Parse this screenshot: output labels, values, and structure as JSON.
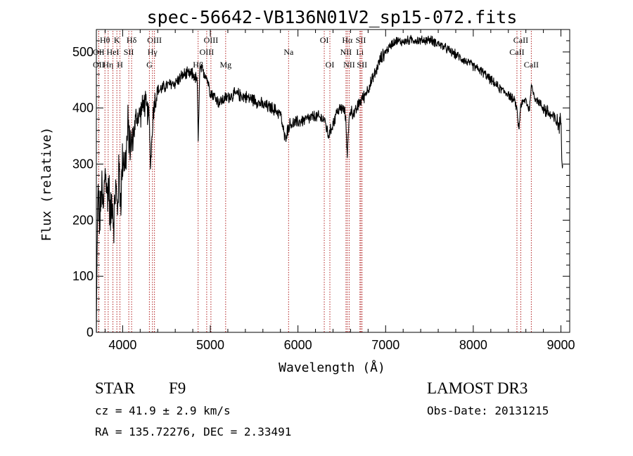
{
  "info": {
    "class": "STAR",
    "subclass": "F9",
    "survey": "LAMOST DR3",
    "cz": "cz = 41.9 ± 2.9 km/s",
    "obs_date": "Obs-Date: 20131215",
    "coords": "RA = 135.72276, DEC =   2.33491"
  },
  "chart_data": {
    "type": "line",
    "title": "spec-56642-VB136N01V2_sp15-072.fits",
    "xlabel": "Wavelength (Å)",
    "ylabel": "Flux (relative)",
    "xlim": [
      3700,
      9100
    ],
    "ylim": [
      0,
      540
    ],
    "x_ticks": [
      4000,
      5000,
      6000,
      7000,
      8000,
      9000
    ],
    "y_ticks": [
      0,
      100,
      200,
      300,
      400,
      500
    ],
    "line_color": "#000000",
    "marker_color": "#b22222",
    "spectrum_anchors": [
      [
        3700,
        0
      ],
      [
        3708,
        150
      ],
      [
        3720,
        250
      ],
      [
        3740,
        190
      ],
      [
        3760,
        260
      ],
      [
        3780,
        210
      ],
      [
        3800,
        300
      ],
      [
        3820,
        240
      ],
      [
        3840,
        270
      ],
      [
        3860,
        200
      ],
      [
        3880,
        250
      ],
      [
        3900,
        190
      ],
      [
        3920,
        260
      ],
      [
        3940,
        220
      ],
      [
        3960,
        290
      ],
      [
        3980,
        230
      ],
      [
        4000,
        320
      ],
      [
        4030,
        300
      ],
      [
        4060,
        360
      ],
      [
        4100,
        330
      ],
      [
        4150,
        380
      ],
      [
        4200,
        390
      ],
      [
        4250,
        410
      ],
      [
        4300,
        385
      ],
      [
        4320,
        300
      ],
      [
        4350,
        400
      ],
      [
        4400,
        430
      ],
      [
        4500,
        440
      ],
      [
        4600,
        445
      ],
      [
        4700,
        460
      ],
      [
        4800,
        460
      ],
      [
        4850,
        450
      ],
      [
        4862,
        340
      ],
      [
        4880,
        470
      ],
      [
        4950,
        460
      ],
      [
        5000,
        430
      ],
      [
        5100,
        410
      ],
      [
        5200,
        420
      ],
      [
        5300,
        425
      ],
      [
        5400,
        420
      ],
      [
        5500,
        415
      ],
      [
        5600,
        405
      ],
      [
        5700,
        400
      ],
      [
        5800,
        390
      ],
      [
        5850,
        345
      ],
      [
        5900,
        370
      ],
      [
        6000,
        375
      ],
      [
        6100,
        380
      ],
      [
        6200,
        385
      ],
      [
        6300,
        380
      ],
      [
        6350,
        350
      ],
      [
        6450,
        395
      ],
      [
        6500,
        400
      ],
      [
        6540,
        390
      ],
      [
        6563,
        320
      ],
      [
        6590,
        395
      ],
      [
        6650,
        390
      ],
      [
        6700,
        410
      ],
      [
        6750,
        420
      ],
      [
        6800,
        435
      ],
      [
        6850,
        450
      ],
      [
        6900,
        470
      ],
      [
        6950,
        490
      ],
      [
        7000,
        500
      ],
      [
        7050,
        510
      ],
      [
        7100,
        520
      ],
      [
        7200,
        518
      ],
      [
        7300,
        522
      ],
      [
        7400,
        520
      ],
      [
        7500,
        522
      ],
      [
        7600,
        515
      ],
      [
        7700,
        505
      ],
      [
        7800,
        495
      ],
      [
        7900,
        485
      ],
      [
        8000,
        475
      ],
      [
        8100,
        465
      ],
      [
        8200,
        450
      ],
      [
        8300,
        435
      ],
      [
        8400,
        425
      ],
      [
        8480,
        410
      ],
      [
        8500,
        395
      ],
      [
        8520,
        360
      ],
      [
        8540,
        405
      ],
      [
        8600,
        415
      ],
      [
        8640,
        395
      ],
      [
        8660,
        440
      ],
      [
        8700,
        420
      ],
      [
        8800,
        400
      ],
      [
        8900,
        385
      ],
      [
        8980,
        370
      ],
      [
        9000,
        380
      ],
      [
        9010,
        320
      ],
      [
        9020,
        300
      ]
    ],
    "noise": [
      {
        "x": [
          3700,
          4100
        ],
        "amp": 55
      },
      {
        "x": [
          4100,
          4400
        ],
        "amp": 30
      },
      {
        "x": [
          4400,
          7000
        ],
        "amp": 14
      },
      {
        "x": [
          7000,
          8800
        ],
        "amp": 10
      },
      {
        "x": [
          8800,
          9020
        ],
        "amp": 18
      }
    ],
    "line_markers": [
      {
        "label": "Hθ",
        "wave": 3798,
        "row": 0,
        "align": "middle"
      },
      {
        "label": "OII",
        "wave": 3727,
        "row": 1,
        "align": "middle"
      },
      {
        "label": "OII",
        "wave": 3727,
        "row": 2,
        "align": "middle"
      },
      {
        "label": "Hη",
        "wave": 3835,
        "row": 2,
        "align": "middle"
      },
      {
        "label": "K",
        "wave": 3934,
        "row": 0,
        "align": "middle"
      },
      {
        "label": "HeI",
        "wave": 3889,
        "row": 1,
        "align": "middle"
      },
      {
        "label": "H",
        "wave": 3969,
        "row": 2,
        "align": "middle"
      },
      {
        "label": "SII",
        "wave": 4070,
        "row": 1,
        "align": "middle"
      },
      {
        "label": "Hδ",
        "wave": 4102,
        "row": 0,
        "align": "middle"
      },
      {
        "label": "OIII",
        "wave": 4363,
        "row": 0,
        "align": "middle"
      },
      {
        "label": "Hγ",
        "wave": 4340,
        "row": 1,
        "align": "middle"
      },
      {
        "label": "G",
        "wave": 4305,
        "row": 2,
        "align": "middle"
      },
      {
        "label": "OIII",
        "wave": 5007,
        "row": 0,
        "align": "middle"
      },
      {
        "label": "OIII",
        "wave": 4959,
        "row": 1,
        "align": "middle"
      },
      {
        "label": "Hβ",
        "wave": 4861,
        "row": 2,
        "align": "middle"
      },
      {
        "label": "Mg",
        "wave": 5175,
        "row": 2,
        "align": "middle"
      },
      {
        "label": "Na",
        "wave": 5893,
        "row": 1,
        "align": "middle"
      },
      {
        "label": "OI",
        "wave": 6300,
        "row": 0,
        "align": "middle"
      },
      {
        "label": "OI",
        "wave": 6364,
        "row": 2,
        "align": "middle"
      },
      {
        "label": "Hα",
        "wave": 6563,
        "row": 0,
        "align": "middle"
      },
      {
        "label": "NII",
        "wave": 6548,
        "row": 1,
        "align": "middle"
      },
      {
        "label": "NII",
        "wave": 6584,
        "row": 2,
        "align": "middle"
      },
      {
        "label": "SII",
        "wave": 6717,
        "row": 0,
        "align": "middle"
      },
      {
        "label": "Li",
        "wave": 6707,
        "row": 1,
        "align": "middle"
      },
      {
        "label": "SII",
        "wave": 6731,
        "row": 2,
        "align": "middle"
      },
      {
        "label": "CaII",
        "wave": 8542,
        "row": 0,
        "align": "middle"
      },
      {
        "label": "CaII",
        "wave": 8498,
        "row": 1,
        "align": "middle"
      },
      {
        "label": "CaII",
        "wave": 8662,
        "row": 2,
        "align": "middle"
      }
    ]
  }
}
